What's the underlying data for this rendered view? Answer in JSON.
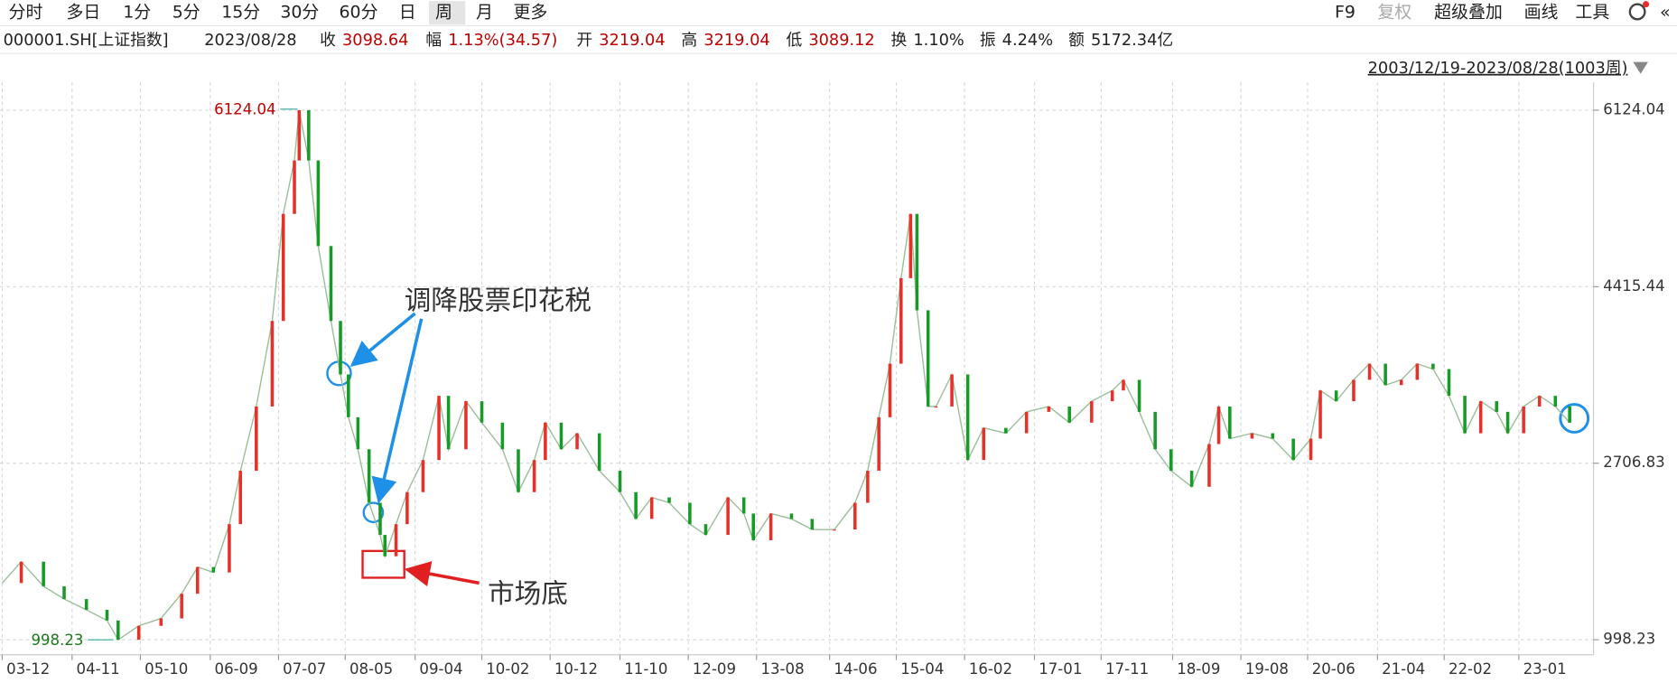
{
  "toolbar": {
    "periods": [
      "分时",
      "多日",
      "1分",
      "5分",
      "15分",
      "30分",
      "60分",
      "日",
      "周",
      "月",
      "更多"
    ],
    "active": "周",
    "tools": [
      "F9",
      "复权",
      "超级叠加",
      "画线",
      "工具"
    ]
  },
  "info": {
    "symbol": "000001.SH[上证指数]",
    "date": "2023/08/28",
    "fields": [
      {
        "label": "收",
        "value": "3098.64",
        "color": "#c00000"
      },
      {
        "label": "幅",
        "value": "1.13%(34.57)",
        "color": "#c00000"
      },
      {
        "label": "开",
        "value": "3219.04",
        "color": "#c00000"
      },
      {
        "label": "高",
        "value": "3219.04",
        "color": "#c00000"
      },
      {
        "label": "低",
        "value": "3089.12",
        "color": "#c00000"
      },
      {
        "label": "换",
        "value": "1.10%",
        "color": "#222222"
      },
      {
        "label": "振",
        "value": "4.24%",
        "color": "#222222"
      },
      {
        "label": "额",
        "value": "5172.34亿",
        "color": "#222222"
      }
    ],
    "range": "2003/12/19-2023/08/28(1003周)"
  },
  "chart_data": {
    "type": "candlestick",
    "up_color": "#e8302a",
    "down_color": "#179a27",
    "line_color": "#9bbf9b",
    "xlim": [
      0,
      1000
    ],
    "ylim": [
      853,
      6393
    ],
    "yticks": [
      998.23,
      2706.83,
      4415.44,
      6124.04
    ],
    "grid": true,
    "xticks": [
      {
        "value": 0,
        "label": "03-12"
      },
      {
        "value": 44,
        "label": "04-11"
      },
      {
        "value": 87,
        "label": "05-10"
      },
      {
        "value": 131,
        "label": "06-09"
      },
      {
        "value": 174,
        "label": "07-07"
      },
      {
        "value": 216,
        "label": "08-05"
      },
      {
        "value": 260,
        "label": "09-04"
      },
      {
        "value": 302,
        "label": "10-02"
      },
      {
        "value": 345,
        "label": "10-12"
      },
      {
        "value": 389,
        "label": "11-10"
      },
      {
        "value": 432,
        "label": "12-09"
      },
      {
        "value": 475,
        "label": "13-08"
      },
      {
        "value": 521,
        "label": "14-06"
      },
      {
        "value": 563,
        "label": "15-04"
      },
      {
        "value": 606,
        "label": "16-02"
      },
      {
        "value": 650,
        "label": "17-01"
      },
      {
        "value": 692,
        "label": "17-11"
      },
      {
        "value": 737,
        "label": "18-09"
      },
      {
        "value": 780,
        "label": "19-08"
      },
      {
        "value": 822,
        "label": "20-06"
      },
      {
        "value": 866,
        "label": "21-04"
      },
      {
        "value": 908,
        "label": "22-02"
      },
      {
        "value": 955,
        "label": "23-01"
      }
    ],
    "x": [
      0,
      12,
      26,
      39,
      53,
      66,
      73,
      86,
      100,
      113,
      123,
      133,
      143,
      150,
      160,
      170,
      177,
      184,
      187,
      193,
      199,
      207,
      213,
      218,
      224,
      231,
      238,
      241,
      248,
      255,
      265,
      275,
      281,
      292,
      302,
      315,
      325,
      335,
      342,
      352,
      362,
      376,
      389,
      399,
      409,
      420,
      433,
      443,
      457,
      467,
      473,
      484,
      497,
      510,
      524,
      537,
      545,
      552,
      559,
      566,
      572,
      576,
      583,
      588,
      598,
      608,
      618,
      632,
      645,
      659,
      672,
      686,
      699,
      706,
      716,
      726,
      736,
      749,
      760,
      766,
      773,
      787,
      800,
      813,
      824,
      830,
      840,
      851,
      861,
      871,
      881,
      891,
      901,
      911,
      921,
      931,
      941,
      948,
      958,
      968,
      978,
      987
    ],
    "values": [
      1547,
      1754,
      1516,
      1392,
      1288,
      1185,
      998.23,
      1133,
      1205,
      1444,
      1702,
      1650,
      2117,
      2634,
      3256,
      4084,
      5120,
      5637,
      6124.04,
      5637,
      4809,
      4084,
      3566,
      3152,
      2842,
      2324,
      2013,
      1806,
      2117,
      2427,
      2738,
      3359,
      2842,
      3307,
      3100,
      2842,
      2427,
      2738,
      3100,
      2842,
      2997,
      2634,
      2427,
      2168,
      2376,
      2324,
      2117,
      2013,
      2376,
      2220,
      1961,
      2220,
      2168,
      2065,
      2065,
      2324,
      2634,
      3152,
      3670,
      4498,
      5120,
      4187,
      3256,
      3256,
      3566,
      2738,
      3049,
      2997,
      3204,
      3256,
      3100,
      3307,
      3411,
      3514,
      3204,
      2842,
      2634,
      2479,
      2893,
      3256,
      2945,
      2997,
      2945,
      2738,
      2945,
      3411,
      3307,
      3514,
      3670,
      3463,
      3514,
      3670,
      3618,
      3359,
      2997,
      3307,
      3204,
      2997,
      3256,
      3359,
      3256,
      3098.64
    ],
    "max_label": 6124.04,
    "min_label": 998.23,
    "callout": "调降股票印花税",
    "bottom_note": "市场底"
  }
}
